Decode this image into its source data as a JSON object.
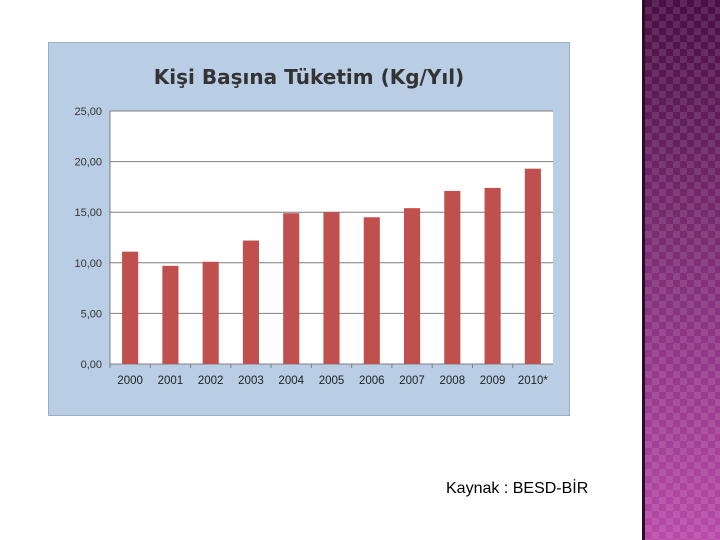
{
  "source": {
    "label": "Kaynak",
    "separator": " : ",
    "value": "BESD-BİR"
  },
  "chart_data": {
    "type": "bar",
    "title": "Kişi Başına Tüketim (Kg/Yıl)",
    "categories": [
      "2000",
      "2001",
      "2002",
      "2003",
      "2004",
      "2005",
      "2006",
      "2007",
      "2008",
      "2009",
      "2010*"
    ],
    "values": [
      11.1,
      9.7,
      10.1,
      12.2,
      14.9,
      15.0,
      14.5,
      15.4,
      17.1,
      17.4,
      19.3
    ],
    "ylim": [
      0,
      25
    ],
    "yticks": [
      "0,00",
      "5,00",
      "10,00",
      "15,00",
      "20,00",
      "25,00"
    ],
    "grid": true,
    "colors": {
      "bar": "#c0504d",
      "frame": "#b9cde5",
      "plot": "#ffffff",
      "grid": "#7f7f7f"
    }
  }
}
